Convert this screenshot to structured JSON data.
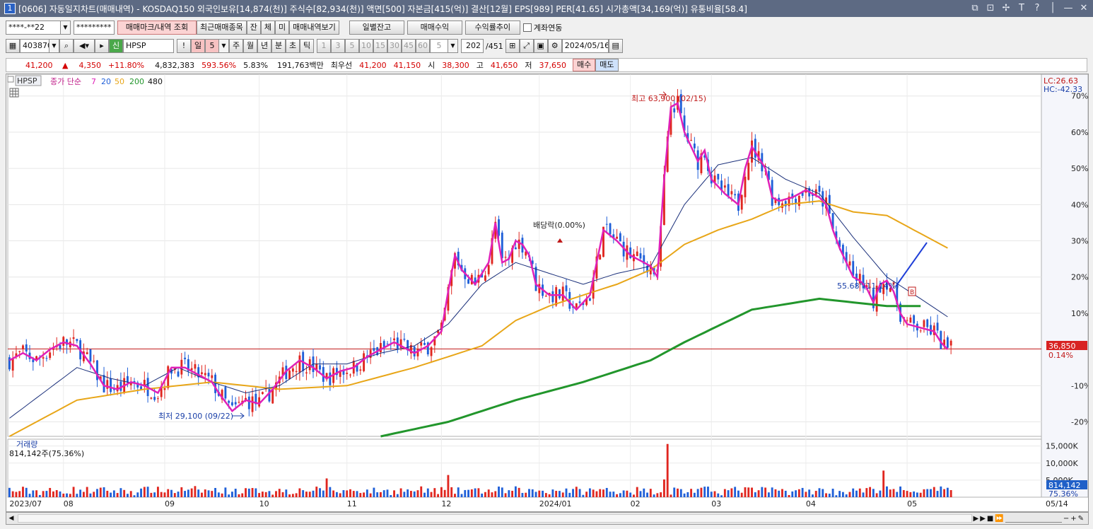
{
  "window": {
    "num": "1",
    "title": "[0606] 자동일지차트(매매내역) - KOSDAQ150 외국인보유[14,874(천)] 주식수[82,934(천)] 액면[500] 자본금[415(억)] 결산[12월] EPS[989] PER[41.65] 시가총액[34,169(억)] 유통비율[58.4]",
    "buttons": [
      "⧉",
      "⊡",
      "✢",
      "T",
      "?",
      "│",
      "—",
      "✕"
    ]
  },
  "toolbar1": {
    "account": "****-**22",
    "password": "*********",
    "btn_mark": "매매마크/내역 조회",
    "btn_recent": "최근매매종목",
    "btn_jan": "잔",
    "btn_che": "체",
    "btn_mi": "미",
    "btn_history": "매매내역보기",
    "btn_daily": "일별잔고",
    "btn_profit": "매매수익",
    "btn_trend": "수익률추이",
    "chk_account": "계좌연동"
  },
  "toolbar2": {
    "code": "403870",
    "shin": "신",
    "name": "HPSP",
    "period_sel": "일",
    "period_num": "5",
    "periods": [
      "주",
      "월",
      "년",
      "분",
      "초",
      "틱"
    ],
    "minutes": [
      "1",
      "3",
      "5",
      "10",
      "15",
      "30",
      "45",
      "60"
    ],
    "count_sel": "5",
    "page": "202",
    "page_total": "/451",
    "date": "2024/05/16"
  },
  "quote": {
    "price": "41,200",
    "arrow": "▲",
    "change": "4,350",
    "pct": "+11.80%",
    "volume": "4,832,383",
    "vol_ratio": "593.56%",
    "turnover": "5.83%",
    "amount": "191,763백만",
    "best_label": "최우선",
    "best_bid": "41,200",
    "best_ask": "41,150",
    "open_label": "시",
    "open": "38,300",
    "high_label": "고",
    "high": "41,650",
    "low_label": "저",
    "low": "37,650",
    "buy": "매수",
    "sell": "매도"
  },
  "legend": {
    "ticker": "HPSP",
    "label": "종가 단순",
    "ma": [
      "7",
      "20",
      "50",
      "200",
      "480"
    ]
  },
  "colors": {
    "up": "#e0261f",
    "down": "#1f5fd8",
    "ma7": "#e020b8",
    "ma20": "#1a2f7a",
    "ma50": "#e8a618",
    "ma200": "#22962c",
    "current_line": "#c01818"
  },
  "right_axis": {
    "lc": "LC:26.63",
    "hc": "HC:-42.33",
    "current_price": "36,850",
    "current_pct": "0.14%"
  },
  "annotations": {
    "high": "최고 63,900 (02/15)",
    "low": "최저 29,100 (09/22)",
    "dividend": "배당락(0.00%)",
    "angle": "55.68°(11.14%)",
    "b_mark": "B"
  },
  "volume_panel": {
    "label": "거래량",
    "value": "814,142주(75.36%)",
    "current": "814,142",
    "pct": "75.36%"
  },
  "chart_data": {
    "type": "candlestick",
    "price_axis": {
      "unit": "%",
      "ylim": [
        -24,
        76
      ],
      "ticks": [
        70,
        60,
        50,
        40,
        30,
        20,
        10,
        -10,
        -20
      ],
      "tick_labels": [
        "70%",
        "60%",
        "50%",
        "40%",
        "30%",
        "20%",
        "10%",
        "-10%",
        "-20%"
      ]
    },
    "volume_axis": {
      "ylim": [
        0,
        17000
      ],
      "ticks": [
        15000,
        10000,
        5000
      ],
      "tick_labels": [
        "15,000K",
        "10,000K",
        "5,000K"
      ]
    },
    "date_labels": [
      "2023/07",
      "08",
      "09",
      "10",
      "11",
      "12",
      "2024/01",
      "02",
      "03",
      "04",
      "05",
      "05/14"
    ],
    "date_positions": [
      0,
      16,
      46,
      74,
      100,
      128,
      157,
      184,
      208,
      236,
      266,
      294
    ],
    "n_bars": 300,
    "highest": {
      "price": 63900,
      "date": "02/15",
      "index": 195
    },
    "lowest": {
      "price": 29100,
      "date": "09/22",
      "index": 66
    },
    "current_price": 36850,
    "series": [
      {
        "name": "7",
        "key": "ma7"
      },
      {
        "name": "20",
        "key": "ma20"
      },
      {
        "name": "50",
        "key": "ma50"
      },
      {
        "name": "200",
        "key": "ma200"
      },
      {
        "name": "480",
        "key": "ma480"
      }
    ],
    "close_path": [
      [
        0,
        -3
      ],
      [
        4,
        -1
      ],
      [
        8,
        -3
      ],
      [
        12,
        0
      ],
      [
        16,
        2
      ],
      [
        20,
        1
      ],
      [
        24,
        -4
      ],
      [
        28,
        -10
      ],
      [
        32,
        -11
      ],
      [
        36,
        -9
      ],
      [
        40,
        -10
      ],
      [
        44,
        -12
      ],
      [
        48,
        -5
      ],
      [
        52,
        -5
      ],
      [
        56,
        -7
      ],
      [
        60,
        -9
      ],
      [
        62,
        -12
      ],
      [
        66,
        -17
      ],
      [
        70,
        -14
      ],
      [
        74,
        -15
      ],
      [
        78,
        -11
      ],
      [
        82,
        -6
      ],
      [
        86,
        -3
      ],
      [
        90,
        -5
      ],
      [
        94,
        -8
      ],
      [
        98,
        -6
      ],
      [
        102,
        -5
      ],
      [
        106,
        -2
      ],
      [
        110,
        0
      ],
      [
        114,
        2
      ],
      [
        118,
        0
      ],
      [
        120,
        -1
      ],
      [
        124,
        1
      ],
      [
        128,
        5
      ],
      [
        130,
        16
      ],
      [
        132,
        26
      ],
      [
        134,
        22
      ],
      [
        136,
        20
      ],
      [
        138,
        18
      ],
      [
        142,
        24
      ],
      [
        144,
        35
      ],
      [
        146,
        24
      ],
      [
        148,
        25
      ],
      [
        150,
        30
      ],
      [
        152,
        29
      ],
      [
        154,
        26
      ],
      [
        156,
        18
      ],
      [
        160,
        15
      ],
      [
        164,
        15
      ],
      [
        168,
        11
      ],
      [
        172,
        15
      ],
      [
        174,
        24
      ],
      [
        176,
        33
      ],
      [
        180,
        30
      ],
      [
        184,
        26
      ],
      [
        186,
        25
      ],
      [
        190,
        23
      ],
      [
        192,
        20
      ],
      [
        194,
        47
      ],
      [
        196,
        67
      ],
      [
        198,
        68
      ],
      [
        200,
        60
      ],
      [
        202,
        56
      ],
      [
        204,
        52
      ],
      [
        206,
        55
      ],
      [
        208,
        47
      ],
      [
        210,
        45
      ],
      [
        212,
        43
      ],
      [
        216,
        40
      ],
      [
        218,
        50
      ],
      [
        220,
        56
      ],
      [
        222,
        53
      ],
      [
        224,
        50
      ],
      [
        226,
        42
      ],
      [
        228,
        41
      ],
      [
        232,
        42
      ],
      [
        236,
        44
      ],
      [
        240,
        42
      ],
      [
        242,
        40
      ],
      [
        244,
        33
      ],
      [
        246,
        28
      ],
      [
        248,
        24
      ],
      [
        250,
        20
      ],
      [
        252,
        19
      ],
      [
        254,
        17
      ],
      [
        256,
        13
      ],
      [
        258,
        18
      ],
      [
        260,
        19
      ],
      [
        262,
        16
      ],
      [
        264,
        10
      ],
      [
        266,
        7
      ],
      [
        270,
        6
      ],
      [
        274,
        5
      ],
      [
        276,
        2
      ],
      [
        278,
        0
      ]
    ],
    "ma20_path": [
      [
        0,
        -19
      ],
      [
        10,
        -12
      ],
      [
        20,
        -5
      ],
      [
        30,
        -8
      ],
      [
        40,
        -10
      ],
      [
        50,
        -5
      ],
      [
        60,
        -9
      ],
      [
        70,
        -12
      ],
      [
        80,
        -10
      ],
      [
        90,
        -4
      ],
      [
        100,
        -4
      ],
      [
        110,
        -1
      ],
      [
        120,
        1
      ],
      [
        130,
        7
      ],
      [
        140,
        18
      ],
      [
        150,
        24
      ],
      [
        160,
        21
      ],
      [
        170,
        18
      ],
      [
        180,
        21
      ],
      [
        190,
        23
      ],
      [
        200,
        40
      ],
      [
        210,
        51
      ],
      [
        220,
        53
      ],
      [
        230,
        47
      ],
      [
        240,
        43
      ],
      [
        250,
        31
      ],
      [
        260,
        20
      ],
      [
        270,
        14
      ],
      [
        278,
        9
      ]
    ],
    "ma50_path": [
      [
        0,
        -24
      ],
      [
        20,
        -14
      ],
      [
        40,
        -11
      ],
      [
        60,
        -9
      ],
      [
        80,
        -11
      ],
      [
        100,
        -10
      ],
      [
        120,
        -5
      ],
      [
        140,
        1
      ],
      [
        150,
        8
      ],
      [
        160,
        12
      ],
      [
        180,
        18
      ],
      [
        190,
        22
      ],
      [
        200,
        29
      ],
      [
        210,
        33
      ],
      [
        220,
        36
      ],
      [
        230,
        40
      ],
      [
        240,
        41
      ],
      [
        250,
        38
      ],
      [
        260,
        37
      ],
      [
        266,
        34
      ],
      [
        278,
        28
      ]
    ],
    "ma200_path": [
      [
        110,
        -24
      ],
      [
        130,
        -20
      ],
      [
        150,
        -14
      ],
      [
        170,
        -9
      ],
      [
        190,
        -3
      ],
      [
        200,
        2
      ],
      [
        220,
        11
      ],
      [
        240,
        14
      ],
      [
        260,
        12
      ],
      [
        270,
        12
      ]
    ]
  }
}
